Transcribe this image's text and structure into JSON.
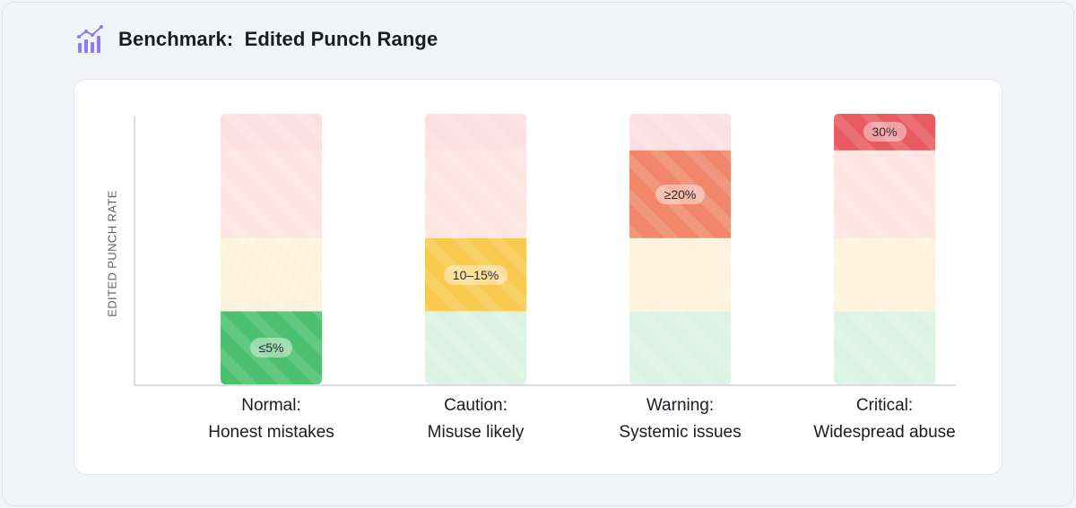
{
  "header": {
    "title": "Benchmark:  Edited Punch Range",
    "icon": "bar-chart-trend-icon"
  },
  "chart_data": {
    "type": "bar",
    "title": "Benchmark:  Edited Punch Range",
    "ylabel": "EDITED PUNCH RATE",
    "xlabel": "",
    "ylim": [
      0,
      37
    ],
    "bands": [
      {
        "name": "green",
        "from": 0,
        "to": 10,
        "base": "#dcf3e3",
        "active": "#4cc06f"
      },
      {
        "name": "yellow",
        "from": 10,
        "to": 20,
        "base": "#fdf3dc",
        "active": "#f7c94e"
      },
      {
        "name": "salmon",
        "from": 20,
        "to": 32,
        "base": "#fde5e1",
        "active": "#f0876a"
      },
      {
        "name": "red",
        "from": 32,
        "to": 37,
        "base": "#fcdfe0",
        "active": "#e85b61"
      }
    ],
    "categories": [
      {
        "line1": "Normal:",
        "line2": "Honest mistakes",
        "value_label": "≤5%",
        "active_band": 0
      },
      {
        "line1": "Caution:",
        "line2": "Misuse likely",
        "value_label": "10–15%",
        "active_band": 1
      },
      {
        "line1": "Warning:",
        "line2": "Systemic issues",
        "value_label": "≥20%",
        "active_band": 2
      },
      {
        "line1": "Critical:",
        "line2": "Widespread abuse",
        "value_label": "30%",
        "active_band": 3
      }
    ]
  }
}
